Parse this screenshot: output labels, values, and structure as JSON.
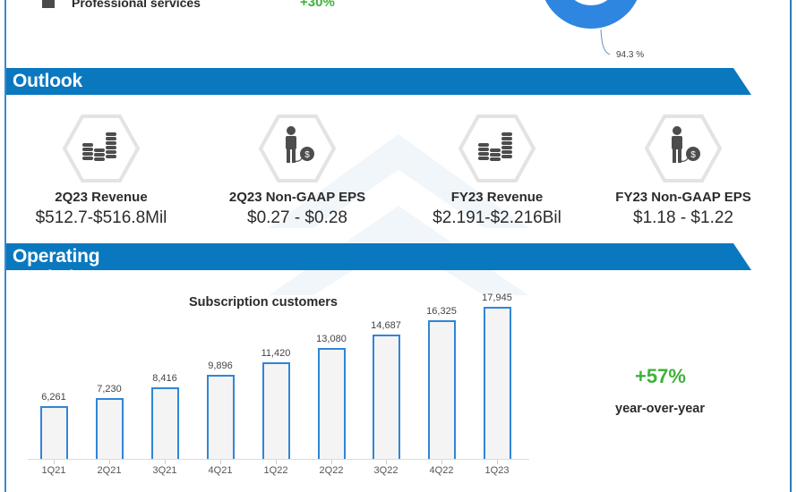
{
  "top_segment": {
    "legend_label": "Professional services",
    "legend_change": "+30%",
    "legend_swatch_color": "#4a4a4a",
    "donut_color": "#2f86e0",
    "donut_label": "94.3 %"
  },
  "outlook": {
    "title": "Outlook",
    "items": [
      {
        "icon": "coins-stack-icon",
        "title": "2Q23 Revenue",
        "value": "$512.7-$516.8Mil"
      },
      {
        "icon": "person-dollar-icon",
        "title": "2Q23 Non-GAAP EPS",
        "value": "$0.27 - $0.28"
      },
      {
        "icon": "coins-stack-icon",
        "title": "FY23 Revenue",
        "value": "$2.191-$2.216Bil"
      },
      {
        "icon": "person-dollar-icon",
        "title": "FY23 Non-GAAP EPS",
        "value": "$1.18 - $1.22"
      }
    ]
  },
  "operating_statistics": {
    "title": "Operating Statistics",
    "yoy_value": "+57%",
    "yoy_label": "year-over-year"
  },
  "colors": {
    "banner": "#0a78bf",
    "bar_border": "#2f86d6",
    "bar_fill": "#f4f4f4",
    "positive": "#3fb23a"
  },
  "chart_data": {
    "type": "bar",
    "title": "Subscription customers",
    "categories": [
      "1Q21",
      "2Q21",
      "3Q21",
      "4Q21",
      "1Q22",
      "2Q22",
      "3Q22",
      "4Q22",
      "1Q23"
    ],
    "values": [
      6261,
      7230,
      8416,
      9896,
      11420,
      13080,
      14687,
      16325,
      17945
    ],
    "value_labels": [
      "6,261",
      "7,230",
      "8,416",
      "9,896",
      "11,420",
      "13,080",
      "14,687",
      "16,325",
      "17,945"
    ],
    "xlabel": "",
    "ylabel": "",
    "ylim": [
      0,
      18000
    ],
    "grid": false,
    "legend": "none"
  }
}
